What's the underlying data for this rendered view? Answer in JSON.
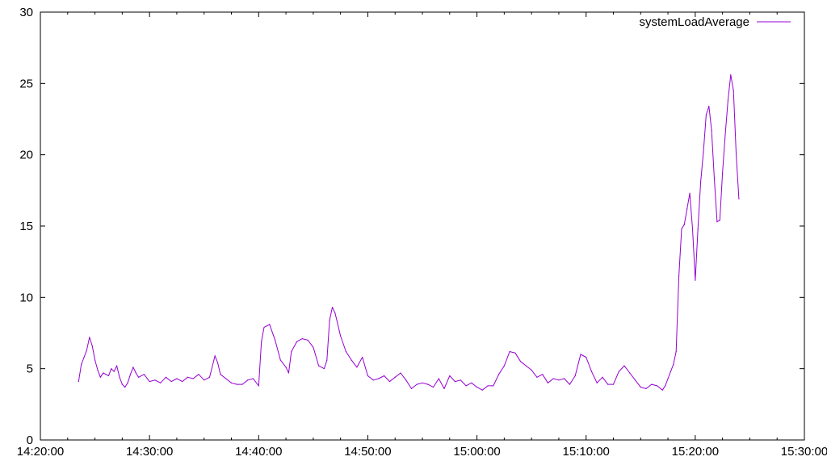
{
  "chart_data": {
    "type": "line",
    "title": "",
    "xlabel": "",
    "ylabel": "",
    "xlim": [
      "14:20:00",
      "15:30:00"
    ],
    "ylim": [
      0,
      30
    ],
    "grid": false,
    "legend_position": "top-right",
    "x_tick_labels": [
      "14:20:00",
      "14:30:00",
      "14:40:00",
      "14:50:00",
      "15:00:00",
      "15:10:00",
      "15:20:00",
      "15:30:00"
    ],
    "y_tick_labels": [
      "0",
      "5",
      "10",
      "15",
      "20",
      "25",
      "30"
    ],
    "series": [
      {
        "name": "systemLoadAverage",
        "color": "#9400d3",
        "x": [
          "14:23:30",
          "14:23:45",
          "14:24:00",
          "14:24:15",
          "14:24:30",
          "14:24:45",
          "14:25:00",
          "14:25:15",
          "14:25:30",
          "14:25:45",
          "14:26:00",
          "14:26:15",
          "14:26:30",
          "14:26:45",
          "14:27:00",
          "14:27:15",
          "14:27:30",
          "14:27:45",
          "14:28:00",
          "14:28:15",
          "14:28:30",
          "14:28:45",
          "14:29:00",
          "14:29:30",
          "14:30:00",
          "14:30:30",
          "14:31:00",
          "14:31:30",
          "14:32:00",
          "14:32:30",
          "14:33:00",
          "14:33:30",
          "14:34:00",
          "14:34:30",
          "14:35:00",
          "14:35:30",
          "14:36:00",
          "14:36:15",
          "14:36:30",
          "14:37:00",
          "14:37:30",
          "14:38:00",
          "14:38:30",
          "14:39:00",
          "14:39:30",
          "14:40:00",
          "14:40:15",
          "14:40:30",
          "14:40:45",
          "14:41:00",
          "14:41:30",
          "14:42:00",
          "14:42:30",
          "14:42:45",
          "14:43:00",
          "14:43:30",
          "14:44:00",
          "14:44:30",
          "14:45:00",
          "14:45:30",
          "14:46:00",
          "14:46:15",
          "14:46:30",
          "14:46:45",
          "14:47:00",
          "14:47:30",
          "14:48:00",
          "14:48:30",
          "14:49:00",
          "14:49:30",
          "14:50:00",
          "14:50:30",
          "14:51:00",
          "14:51:30",
          "14:52:00",
          "14:52:30",
          "14:53:00",
          "14:53:30",
          "14:54:00",
          "14:54:30",
          "14:55:00",
          "14:55:30",
          "14:56:00",
          "14:56:30",
          "14:57:00",
          "14:57:30",
          "14:58:00",
          "14:58:30",
          "14:59:00",
          "14:59:30",
          "15:00:00",
          "15:00:30",
          "15:01:00",
          "15:01:30",
          "15:02:00",
          "15:02:30",
          "15:03:00",
          "15:03:30",
          "15:04:00",
          "15:04:30",
          "15:05:00",
          "15:05:30",
          "15:06:00",
          "15:06:30",
          "15:07:00",
          "15:07:30",
          "15:08:00",
          "15:08:30",
          "15:09:00",
          "15:09:30",
          "15:10:00",
          "15:10:30",
          "15:11:00",
          "15:11:30",
          "15:12:00",
          "15:12:30",
          "15:13:00",
          "15:13:30",
          "15:14:00",
          "15:14:30",
          "15:15:00",
          "15:15:30",
          "15:16:00",
          "15:16:30",
          "15:17:00",
          "15:17:15",
          "15:17:30",
          "15:17:45",
          "15:18:00",
          "15:18:15",
          "15:18:30",
          "15:18:45",
          "15:19:00",
          "15:19:15",
          "15:19:30",
          "15:19:45",
          "15:20:00",
          "15:20:15",
          "15:20:30",
          "15:20:45",
          "15:21:00",
          "15:21:15",
          "15:21:30",
          "15:21:45",
          "15:22:00",
          "15:22:15",
          "15:22:30",
          "15:22:45",
          "15:23:00",
          "15:23:15",
          "15:23:30",
          "15:23:45",
          "15:24:00"
        ],
        "y": [
          4.1,
          5.3,
          5.8,
          6.3,
          7.2,
          6.6,
          5.6,
          4.9,
          4.4,
          4.7,
          4.6,
          4.5,
          5.0,
          4.8,
          5.2,
          4.4,
          3.9,
          3.7,
          4.0,
          4.6,
          5.1,
          4.7,
          4.4,
          4.6,
          4.1,
          4.2,
          4.0,
          4.4,
          4.1,
          4.3,
          4.1,
          4.4,
          4.3,
          4.6,
          4.2,
          4.4,
          5.9,
          5.4,
          4.6,
          4.3,
          4.0,
          3.9,
          3.9,
          4.2,
          4.3,
          3.8,
          6.9,
          7.9,
          8.0,
          8.1,
          7.0,
          5.6,
          5.1,
          4.7,
          6.2,
          6.9,
          7.1,
          7.0,
          6.5,
          5.2,
          5.0,
          5.6,
          8.4,
          9.3,
          8.9,
          7.3,
          6.2,
          5.6,
          5.1,
          5.8,
          4.5,
          4.2,
          4.3,
          4.5,
          4.1,
          4.4,
          4.7,
          4.2,
          3.6,
          3.9,
          4.0,
          3.9,
          3.7,
          4.3,
          3.6,
          4.5,
          4.1,
          4.2,
          3.8,
          4.0,
          3.7,
          3.5,
          3.8,
          3.8,
          4.6,
          5.2,
          6.2,
          6.1,
          5.5,
          5.2,
          4.9,
          4.4,
          4.6,
          4.0,
          4.3,
          4.2,
          4.3,
          3.9,
          4.5,
          6.0,
          5.8,
          4.8,
          4.0,
          4.4,
          3.9,
          3.9,
          4.8,
          5.2,
          4.7,
          4.2,
          3.7,
          3.6,
          3.9,
          3.8,
          3.5,
          3.8,
          4.3,
          4.8,
          5.3,
          6.2,
          11.5,
          14.8,
          15.1,
          16.2,
          17.3,
          14.8,
          11.2,
          14.8,
          18.1,
          20.2,
          22.8,
          23.4,
          21.7,
          18.3,
          15.3,
          15.4,
          18.7,
          21.4,
          23.8,
          25.6,
          24.5,
          20.1,
          16.9
        ]
      }
    ]
  }
}
